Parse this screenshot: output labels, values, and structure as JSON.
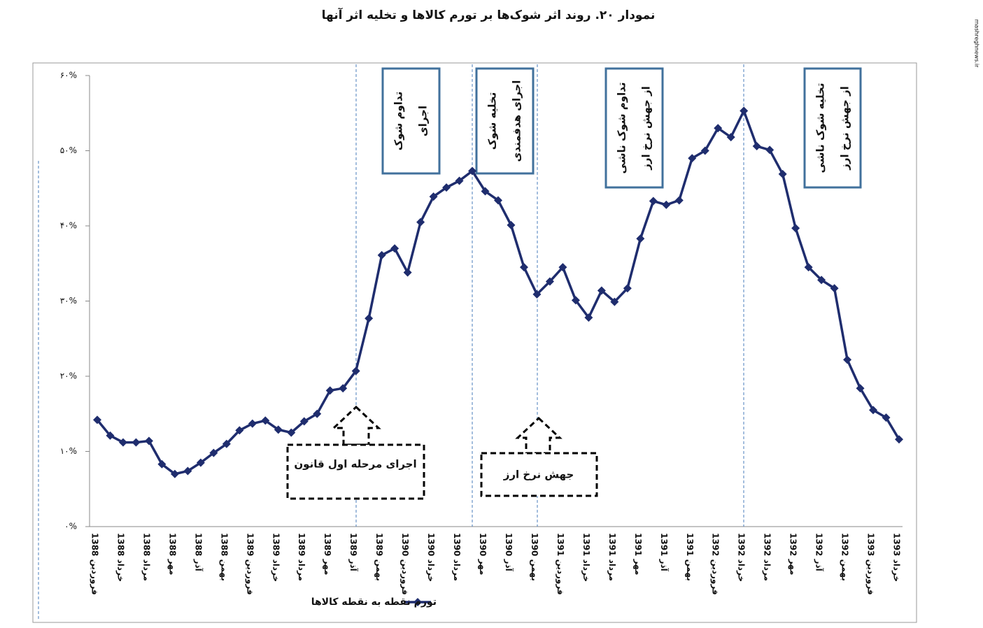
{
  "chart_data": {
    "type": "line",
    "title": "نمودار ۲۰. روند اثر شوک‌ها بر تورم کالاها و تخلیه اثر آنها",
    "watermark": "mashreghnews.ir",
    "categories": [
      "1388 فروردین",
      null,
      "1388 خرداد",
      null,
      "1388 مرداد",
      null,
      "1388 مهر",
      null,
      "1388 آذر",
      null,
      "1388 بهمن",
      null,
      "1389 فروردین",
      null,
      "1389 خرداد",
      null,
      "1389 مرداد",
      null,
      "1389 مهر",
      null,
      "1389 آذر",
      null,
      "1389 بهمن",
      null,
      "1390 فروردین",
      null,
      "1390 خرداد",
      null,
      "1390 مرداد",
      null,
      "1390 مهر",
      null,
      "1390 آذر",
      null,
      "1390 بهمن",
      null,
      "1391 فروردین",
      null,
      "1391 خرداد",
      null,
      "1391 مرداد",
      null,
      "1391 مهر",
      null,
      "1391 آذر",
      null,
      "1391 بهمن",
      null,
      "1392 فروردین",
      null,
      "1392 خرداد",
      null,
      "1392 مرداد",
      null,
      "1392 مهر",
      null,
      "1392 آذر",
      null,
      "1392 بهمن",
      null,
      "1393 فروردین",
      null,
      "1393 خرداد"
    ],
    "series": [
      {
        "name": "تورم نقطه به نقطه کالاها",
        "color": "#1f2d6e",
        "values": [
          14.2,
          12.1,
          11.2,
          11.2,
          11.4,
          8.3,
          7.0,
          7.4,
          8.5,
          9.8,
          11.0,
          12.8,
          13.7,
          14.1,
          12.9,
          12.5,
          14.0,
          15.0,
          18.1,
          18.4,
          20.7,
          27.7,
          36.1,
          37.0,
          33.8,
          40.5,
          43.9,
          45.1,
          46.0,
          47.3,
          44.6,
          43.4,
          40.1,
          34.5,
          30.9,
          32.6,
          34.5,
          30.1,
          27.8,
          31.4,
          29.9,
          31.7,
          38.3,
          43.3,
          42.8,
          43.4,
          49.0,
          50.0,
          53.0,
          51.8,
          55.3,
          50.6,
          50.1,
          46.9,
          39.7,
          34.5,
          32.8,
          31.7,
          22.2,
          18.4,
          15.5,
          14.5,
          11.6
        ]
      }
    ],
    "ylim": [
      0,
      60
    ],
    "yticks": [
      {
        "value": 0,
        "label": "۰%"
      },
      {
        "value": 10,
        "label": "۱۰%"
      },
      {
        "value": 20,
        "label": "۲۰%"
      },
      {
        "value": 30,
        "label": "۳۰%"
      },
      {
        "value": 40,
        "label": "۴۰%"
      },
      {
        "value": 50,
        "label": "۵۰%"
      },
      {
        "value": 60,
        "label": "۶۰%"
      }
    ],
    "grid": false,
    "legend": "bottom",
    "annotations": [
      {
        "lines": [
          "تداوم شوک",
          "اجرای"
        ]
      },
      {
        "lines": [
          "تخلیه شوک",
          "اجرای هدفمندی"
        ]
      },
      {
        "lines": [
          "تداوم شوک ناشی",
          "از جهش نرخ ارز"
        ]
      },
      {
        "lines": [
          "تخلیه شوک ناشی",
          "از جهش نرخ ارز"
        ]
      },
      {
        "lines": [
          "اجرای مرحله اول قانون"
        ]
      },
      {
        "lines": [
          "جهش نرخ ارز"
        ]
      }
    ]
  }
}
